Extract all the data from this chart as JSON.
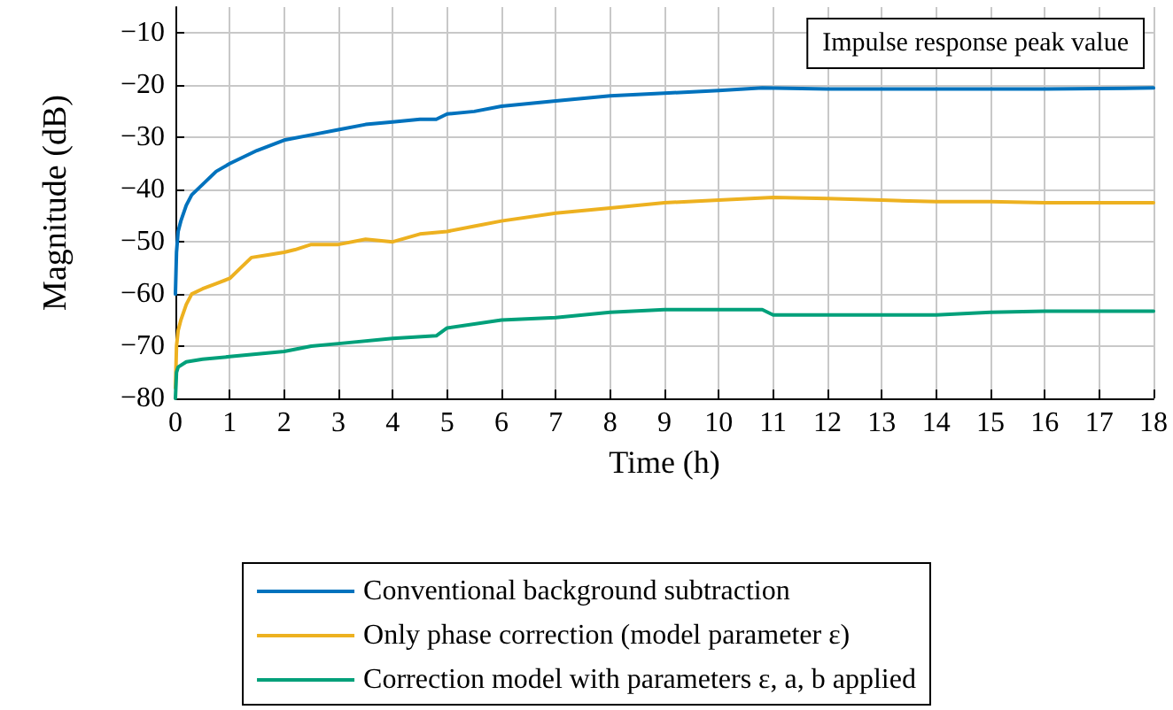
{
  "chart_data": {
    "type": "line",
    "xlabel": "Time (h)",
    "ylabel": "Magnitude (dB)",
    "annotations": [
      "Impulse response peak value"
    ],
    "xlim": [
      0,
      18
    ],
    "xticks": [
      0,
      1,
      2,
      3,
      4,
      5,
      6,
      7,
      8,
      9,
      10,
      11,
      12,
      13,
      14,
      15,
      16,
      17,
      18
    ],
    "ylim": [
      -80,
      -5
    ],
    "yticks": [
      -80,
      -70,
      -60,
      -50,
      -40,
      -30,
      -20,
      -10
    ],
    "grid": true,
    "legend": "bottom",
    "marker": "none",
    "line_style": "solid",
    "series": [
      {
        "name": "Conventional background subtraction",
        "color": "#0072bd",
        "x": [
          0,
          0.02,
          0.05,
          0.1,
          0.2,
          0.3,
          0.5,
          0.75,
          1,
          1.5,
          2,
          2.5,
          3,
          3.5,
          4,
          4.5,
          4.8,
          5,
          5.5,
          6,
          7,
          8,
          9,
          10,
          10.8,
          12,
          14,
          16,
          18
        ],
        "values": [
          -60,
          -52,
          -48,
          -46,
          -43,
          -41,
          -39,
          -36.5,
          -35,
          -32.5,
          -30.5,
          -29.5,
          -28.5,
          -27.5,
          -27,
          -26.5,
          -26.5,
          -25.5,
          -25,
          -24,
          -23,
          -22,
          -21.5,
          -21,
          -20.5,
          -20.7,
          -20.7,
          -20.7,
          -20.5
        ]
      },
      {
        "name": "Only phase correction (model parameter ε)",
        "color": "#edb120",
        "x": [
          0,
          0.02,
          0.05,
          0.1,
          0.2,
          0.3,
          0.5,
          0.75,
          1,
          1.2,
          1.4,
          1.7,
          2,
          2.2,
          2.5,
          3,
          3.5,
          4,
          4.5,
          5,
          5.5,
          6,
          7,
          8,
          9,
          10,
          11,
          12,
          13,
          14,
          15,
          16,
          17,
          18
        ],
        "values": [
          -78,
          -70,
          -67,
          -65,
          -62,
          -60,
          -59,
          -58,
          -57,
          -55,
          -53,
          -52.5,
          -52,
          -51.5,
          -50.5,
          -50.5,
          -49.5,
          -50,
          -48.5,
          -48,
          -47,
          -46,
          -44.5,
          -43.5,
          -42.5,
          -42,
          -41.5,
          -41.7,
          -42,
          -42.3,
          -42.3,
          -42.5,
          -42.5,
          -42.5
        ]
      },
      {
        "name": "Correction model with parameters ε, a, b applied",
        "color": "#00a07a",
        "x": [
          0,
          0.02,
          0.05,
          0.2,
          0.5,
          1,
          2,
          2.5,
          3,
          4,
          4.8,
          5,
          6,
          7,
          8,
          9,
          10,
          10.8,
          11,
          12,
          13,
          14,
          15,
          16,
          17,
          18
        ],
        "values": [
          -80,
          -75,
          -74,
          -73,
          -72.5,
          -72,
          -71,
          -70,
          -69.5,
          -68.5,
          -68,
          -66.5,
          -65,
          -64.5,
          -63.5,
          -63,
          -63,
          -63,
          -64,
          -64,
          -64,
          -64,
          -63.5,
          -63.3,
          -63.3,
          -63.3
        ]
      }
    ]
  }
}
